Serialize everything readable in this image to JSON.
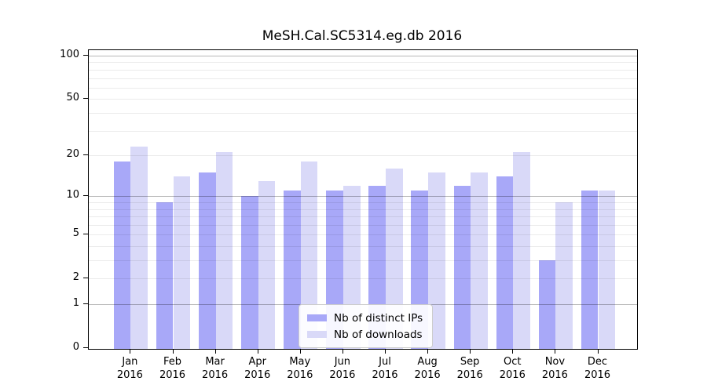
{
  "figure": {
    "title": "MeSH.Cal.SC5314.eg.db 2016"
  },
  "chart_data": {
    "type": "bar",
    "title": "MeSH.Cal.SC5314.eg.db 2016",
    "x_tick_months": [
      "Jan",
      "Feb",
      "Mar",
      "Apr",
      "May",
      "Jun",
      "Jul",
      "Aug",
      "Sep",
      "Oct",
      "Nov",
      "Dec"
    ],
    "x_tick_year": "2016",
    "series": [
      {
        "name": "Nb of distinct IPs",
        "color": "#a8a8f8",
        "values": [
          18,
          9,
          15,
          10,
          11,
          11,
          12,
          11,
          12,
          14,
          3,
          11
        ]
      },
      {
        "name": "Nb of downloads",
        "color": "#d9d9f8",
        "values": [
          23,
          14,
          21,
          13,
          18,
          12,
          16,
          15,
          15,
          21,
          9,
          11
        ]
      }
    ],
    "y_ticks": [
      0,
      1,
      2,
      5,
      10,
      20,
      50,
      100
    ],
    "y_minor_gridlines": [
      2,
      3,
      4,
      5,
      6,
      7,
      8,
      9,
      20,
      30,
      40,
      50,
      60,
      70,
      80,
      90
    ],
    "y_major_gridlines": [
      1,
      10,
      100
    ],
    "y_scale": "log10(1+value)",
    "ylim": [
      0,
      110
    ],
    "grid": "horizontal",
    "legend_position": "bottom-center",
    "background_color": "#ffffff",
    "axis_color": "#000000"
  }
}
